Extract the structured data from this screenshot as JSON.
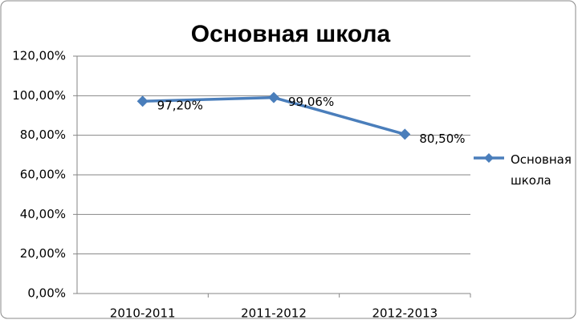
{
  "chart_data": {
    "type": "line",
    "title": "Основная школа",
    "categories": [
      "2010-2011",
      "2011-2012",
      "2012-2013"
    ],
    "series": [
      {
        "name": "Основная школа",
        "color": "#4a7ebb",
        "values": [
          97.2,
          99.06,
          80.5
        ],
        "value_labels": [
          "97,20%",
          "99,06%",
          "80,50%"
        ]
      }
    ],
    "ylim": [
      0,
      120
    ],
    "yticks": [
      {
        "value": 0,
        "label": "0,00%"
      },
      {
        "value": 20,
        "label": "20,00%"
      },
      {
        "value": 40,
        "label": "40,00%"
      },
      {
        "value": 60,
        "label": "60,00%"
      },
      {
        "value": 80,
        "label": "80,00%"
      },
      {
        "value": 100,
        "label": "100,00%"
      },
      {
        "value": 120,
        "label": "120,00%"
      }
    ],
    "grid": true,
    "legend": "right"
  }
}
